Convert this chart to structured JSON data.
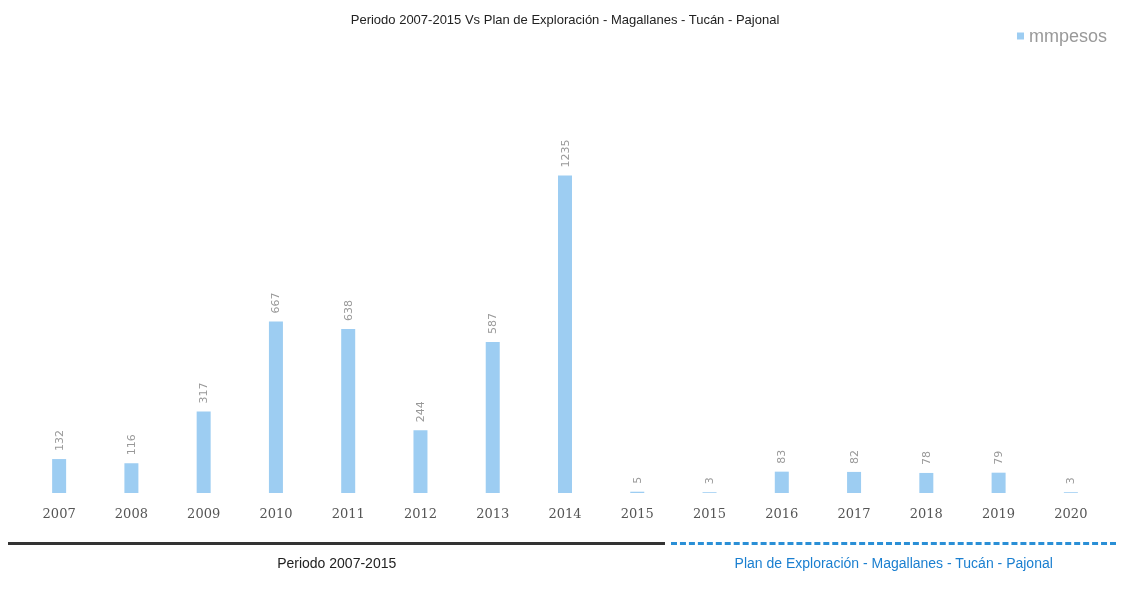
{
  "chart_data": {
    "type": "bar",
    "title": "Periodo 2007-2015 Vs Plan de Exploración - Magallanes - Tucán - Pajonal",
    "categories": [
      "2007",
      "2008",
      "2009",
      "2010",
      "2011",
      "2012",
      "2013",
      "2014",
      "2015",
      "2015",
      "2016",
      "2017",
      "2018",
      "2019",
      "2020"
    ],
    "series": [
      {
        "name": "mmpesos",
        "color": "#9dcdf2",
        "values": [
          132,
          116,
          317,
          667,
          638,
          244,
          587,
          1235,
          5,
          3,
          83,
          82,
          78,
          79,
          3
        ]
      }
    ],
    "data_labels": true,
    "legend": "top right",
    "grid": false,
    "annotations": [
      "Periodo 2007-2015",
      "Plan de Exploración - Magallanes - Tucán - Pajonal"
    ]
  }
}
